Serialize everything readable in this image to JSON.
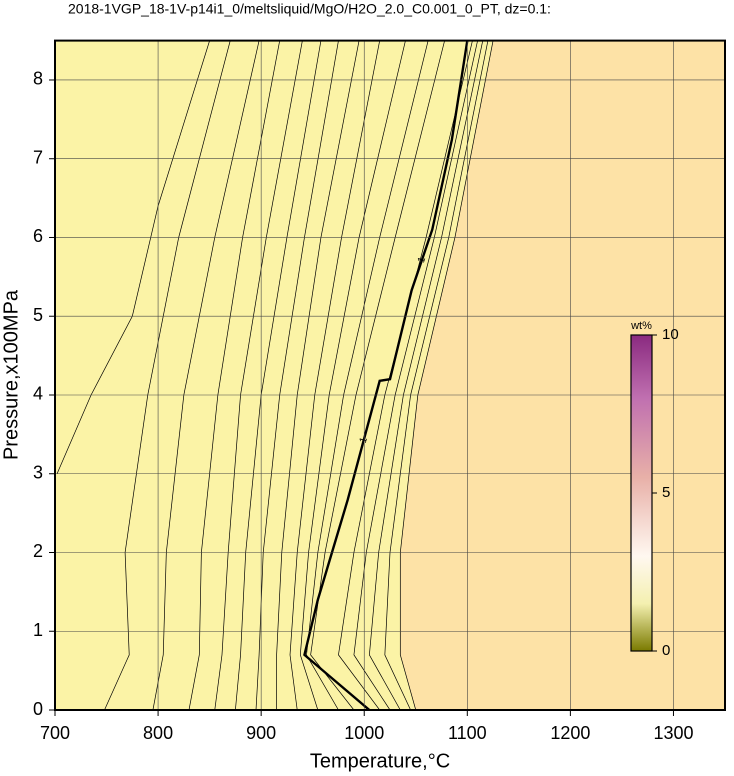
{
  "chart_data": {
    "type": "contour",
    "title": "2018-1VGP_18-1V-p14i1_0/meltsliquid/MgO/H2O_2.0_C0.001_0_PT, dz=0.1:",
    "x_label": "Temperature,°C",
    "y_label": "Pressure,x100MPa",
    "xlim": [
      700,
      1350
    ],
    "ylim": [
      0,
      8.5
    ],
    "xticks": [
      700,
      800,
      900,
      1000,
      1100,
      1200,
      1300
    ],
    "yticks": [
      0,
      1,
      2,
      3,
      4,
      5,
      6,
      7,
      8
    ],
    "grid": true,
    "background_color": "#fbf3a6",
    "high_color": "#fde2a6",
    "contours": [
      {
        "x": [
          702,
          735,
          775,
          800,
          850
        ],
        "y": [
          3.0,
          4.0,
          5.0,
          6.4,
          8.5
        ]
      },
      {
        "x": [
          748,
          772,
          768,
          790,
          820,
          870
        ],
        "y": [
          0,
          0.7,
          2,
          4,
          6,
          8.5
        ]
      },
      {
        "x": [
          795,
          805,
          808,
          825,
          855,
          898
        ],
        "y": [
          0,
          0.7,
          2,
          4,
          6,
          8.5
        ]
      },
      {
        "x": [
          830,
          840,
          842,
          858,
          882,
          918
        ],
        "y": [
          0,
          0.7,
          2,
          4,
          6,
          8.5
        ]
      },
      {
        "x": [
          855,
          862,
          868,
          880,
          905,
          940
        ],
        "y": [
          0,
          0.7,
          2,
          4,
          6,
          8.5
        ]
      },
      {
        "x": [
          875,
          880,
          885,
          900,
          925,
          958
        ],
        "y": [
          0,
          0.7,
          2,
          4,
          6,
          8.5
        ]
      },
      {
        "x": [
          895,
          898,
          902,
          918,
          942,
          975
        ],
        "y": [
          0,
          0.7,
          2,
          4,
          6,
          8.5
        ]
      },
      {
        "x": [
          915,
          915,
          920,
          935,
          958,
          995
        ],
        "y": [
          0,
          0.7,
          2,
          4,
          6,
          8.5
        ]
      },
      {
        "x": [
          935,
          928,
          935,
          952,
          978,
          1015
        ],
        "y": [
          0,
          0.7,
          2,
          4,
          6,
          8.5
        ]
      },
      {
        "x": [
          955,
          938,
          946,
          966,
          995,
          1040
        ],
        "y": [
          0,
          0.7,
          2,
          4,
          6,
          8.5
        ]
      },
      {
        "x": [
          975,
          944,
          955,
          980,
          1015,
          1062
        ],
        "y": [
          0,
          0.7,
          2,
          4,
          6,
          8.5
        ]
      },
      {
        "x": [
          990,
          948,
          962,
          992,
          1030,
          1078
        ],
        "y": [
          0,
          0.7,
          2,
          4,
          6,
          8.5
        ]
      },
      {
        "x": [
          1005,
          942,
          955,
          984,
          1015,
          1025,
          1046,
          1066,
          1085,
          1100
        ],
        "y": [
          0,
          0.7,
          1.4,
          2.67,
          4.18,
          4.2,
          5.33,
          6.1,
          7.24,
          8.5
        ],
        "label": "1",
        "bold": true
      },
      {
        "x": [
          1015,
          975,
          990,
          1020,
          1060,
          1105
        ],
        "y": [
          0,
          0.7,
          2,
          4,
          6,
          8.5
        ]
      },
      {
        "x": [
          1025,
          990,
          1002,
          1030,
          1068,
          1110
        ],
        "y": [
          0,
          0.7,
          2,
          4,
          6,
          8.5
        ]
      },
      {
        "x": [
          1035,
          1005,
          1014,
          1038,
          1075,
          1115
        ],
        "y": [
          0,
          0.7,
          2,
          4,
          6,
          8.5
        ]
      },
      {
        "x": [
          1045,
          1020,
          1025,
          1045,
          1082,
          1120
        ],
        "y": [
          0,
          0.7,
          2,
          4,
          6,
          8.5
        ]
      },
      {
        "x": [
          1050,
          1035,
          1035,
          1052,
          1088,
          1125
        ],
        "y": [
          0,
          0.7,
          2,
          4,
          6,
          8.5
        ]
      }
    ],
    "colorbar": {
      "label": "wt%",
      "lim": [
        0,
        10
      ],
      "ticks": [
        0,
        5,
        10
      ]
    }
  }
}
